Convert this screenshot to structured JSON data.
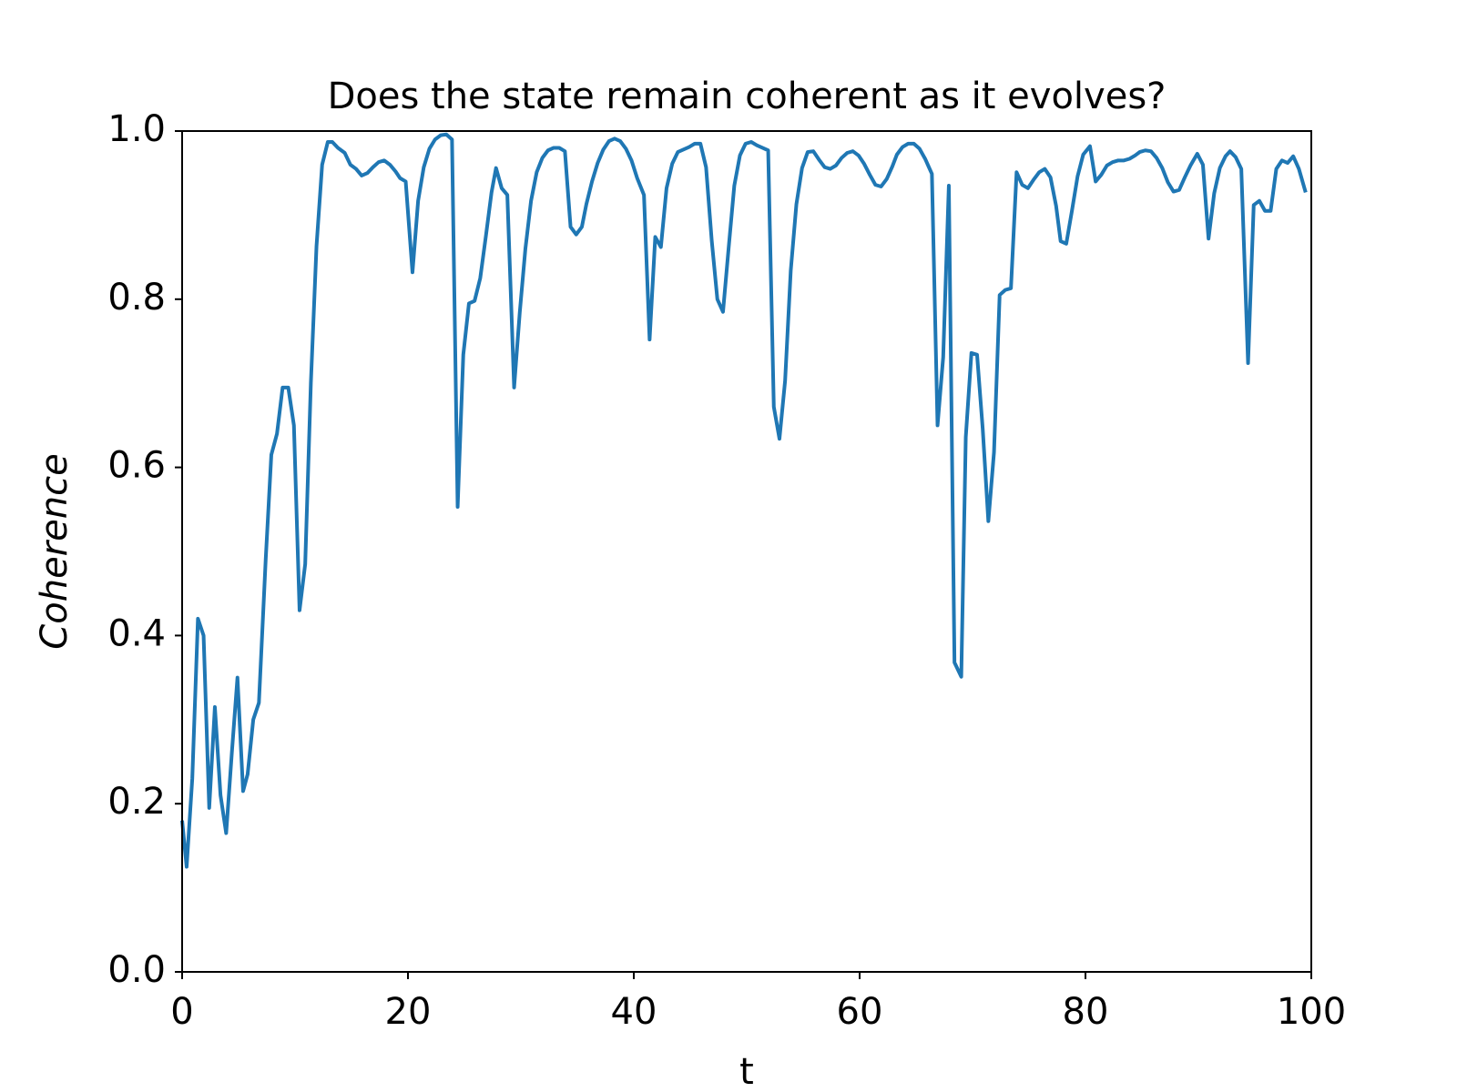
{
  "chart_data": {
    "type": "line",
    "title": "Does the state remain coherent as it evolves?",
    "x_label": "t",
    "y_label": "Coherence",
    "xlim": [
      0,
      100
    ],
    "ylim": [
      0.0,
      1.0
    ],
    "xticks": [
      0,
      20,
      40,
      60,
      80,
      100
    ],
    "yticks": [
      {
        "value": 0,
        "label": "0.0"
      },
      0.2,
      0.4,
      0.6,
      0.8,
      {
        "value": 1,
        "label": "1.0"
      }
    ],
    "grid": false,
    "series": [
      {
        "color": "#1f77b4",
        "x": [
          0,
          0.4,
          0.9,
          1.4,
          1.9,
          2.4,
          2.9,
          3.4,
          3.9,
          4.4,
          4.9,
          5.4,
          5.8,
          6.3,
          6.8,
          7.4,
          7.9,
          8.4,
          8.9,
          9.4,
          9.9,
          10.4,
          10.9,
          11.4,
          11.9,
          12.4,
          12.9,
          13.3,
          13.8,
          14.4,
          14.9,
          15.4,
          15.9,
          16.4,
          16.9,
          17.4,
          17.9,
          18.4,
          18.9,
          19.3,
          19.8,
          20.4,
          20.9,
          21.4,
          21.9,
          22.4,
          22.9,
          23.4,
          23.9,
          24.4,
          24.9,
          25.4,
          25.9,
          26.4,
          26.9,
          27.4,
          27.8,
          28.3,
          28.8,
          29.4,
          29.9,
          30.4,
          30.9,
          31.4,
          31.9,
          32.4,
          32.9,
          33.4,
          33.9,
          34.4,
          34.9,
          35.4,
          35.8,
          36.3,
          36.8,
          37.3,
          37.8,
          38.3,
          38.8,
          39.3,
          39.8,
          40.3,
          40.9,
          41.4,
          41.9,
          42.4,
          42.9,
          43.4,
          43.9,
          44.4,
          44.9,
          45.4,
          45.9,
          46.4,
          46.9,
          47.4,
          47.9,
          48.4,
          48.9,
          49.4,
          49.9,
          50.4,
          50.9,
          51.4,
          51.9,
          52.4,
          52.9,
          53.4,
          53.9,
          54.4,
          54.9,
          55.4,
          55.9,
          56.4,
          56.9,
          57.4,
          57.9,
          58.4,
          58.9,
          59.4,
          59.9,
          60.4,
          60.9,
          61.4,
          61.9,
          62.4,
          62.9,
          63.3,
          63.8,
          64.3,
          64.8,
          65.3,
          65.8,
          66.4,
          66.9,
          67.4,
          67.9,
          68.4,
          69.0,
          69.4,
          69.9,
          70.4,
          70.9,
          71.4,
          71.9,
          72.4,
          72.9,
          73.4,
          73.9,
          74.4,
          74.9,
          75.4,
          75.9,
          76.4,
          76.9,
          77.4,
          77.8,
          78.3,
          78.8,
          79.3,
          79.8,
          80.4,
          80.9,
          81.4,
          81.9,
          82.4,
          82.9,
          83.4,
          83.9,
          84.4,
          84.8,
          85.3,
          85.8,
          86.3,
          86.8,
          87.3,
          87.8,
          88.3,
          88.8,
          89.3,
          89.9,
          90.4,
          90.9,
          91.4,
          91.9,
          92.4,
          92.8,
          93.3,
          93.8,
          94.4,
          94.9,
          95.4,
          95.9,
          96.4,
          96.9,
          97.4,
          97.9,
          98.4,
          98.9,
          99.5
        ],
        "values": [
          0.18,
          0.125,
          0.23,
          0.42,
          0.4,
          0.195,
          0.315,
          0.21,
          0.165,
          0.26,
          0.35,
          0.215,
          0.235,
          0.3,
          0.32,
          0.49,
          0.615,
          0.64,
          0.695,
          0.695,
          0.65,
          0.43,
          0.485,
          0.7,
          0.863,
          0.96,
          0.987,
          0.987,
          0.98,
          0.974,
          0.96,
          0.955,
          0.947,
          0.95,
          0.957,
          0.963,
          0.965,
          0.96,
          0.952,
          0.944,
          0.94,
          0.832,
          0.917,
          0.957,
          0.979,
          0.99,
          0.995,
          0.996,
          0.99,
          0.553,
          0.734,
          0.795,
          0.798,
          0.825,
          0.875,
          0.927,
          0.956,
          0.932,
          0.924,
          0.695,
          0.784,
          0.86,
          0.917,
          0.951,
          0.968,
          0.977,
          0.98,
          0.98,
          0.976,
          0.886,
          0.877,
          0.886,
          0.913,
          0.94,
          0.962,
          0.978,
          0.988,
          0.991,
          0.988,
          0.979,
          0.965,
          0.944,
          0.924,
          0.752,
          0.874,
          0.862,
          0.932,
          0.961,
          0.975,
          0.978,
          0.981,
          0.985,
          0.985,
          0.957,
          0.87,
          0.8,
          0.785,
          0.861,
          0.935,
          0.971,
          0.985,
          0.987,
          0.983,
          0.98,
          0.977,
          0.672,
          0.634,
          0.703,
          0.834,
          0.913,
          0.956,
          0.975,
          0.976,
          0.966,
          0.957,
          0.955,
          0.959,
          0.968,
          0.974,
          0.976,
          0.971,
          0.961,
          0.948,
          0.936,
          0.934,
          0.943,
          0.958,
          0.972,
          0.981,
          0.985,
          0.985,
          0.979,
          0.967,
          0.949,
          0.65,
          0.731,
          0.935,
          0.368,
          0.351,
          0.636,
          0.736,
          0.734,
          0.646,
          0.536,
          0.618,
          0.805,
          0.811,
          0.813,
          0.951,
          0.936,
          0.932,
          0.942,
          0.951,
          0.955,
          0.945,
          0.911,
          0.869,
          0.866,
          0.905,
          0.946,
          0.972,
          0.982,
          0.94,
          0.948,
          0.959,
          0.963,
          0.965,
          0.965,
          0.967,
          0.971,
          0.975,
          0.977,
          0.976,
          0.968,
          0.956,
          0.939,
          0.928,
          0.93,
          0.945,
          0.959,
          0.973,
          0.96,
          0.872,
          0.926,
          0.956,
          0.97,
          0.976,
          0.969,
          0.955,
          0.724,
          0.912,
          0.917,
          0.905,
          0.905,
          0.955,
          0.965,
          0.962,
          0.97,
          0.955,
          0.927
        ]
      }
    ]
  }
}
